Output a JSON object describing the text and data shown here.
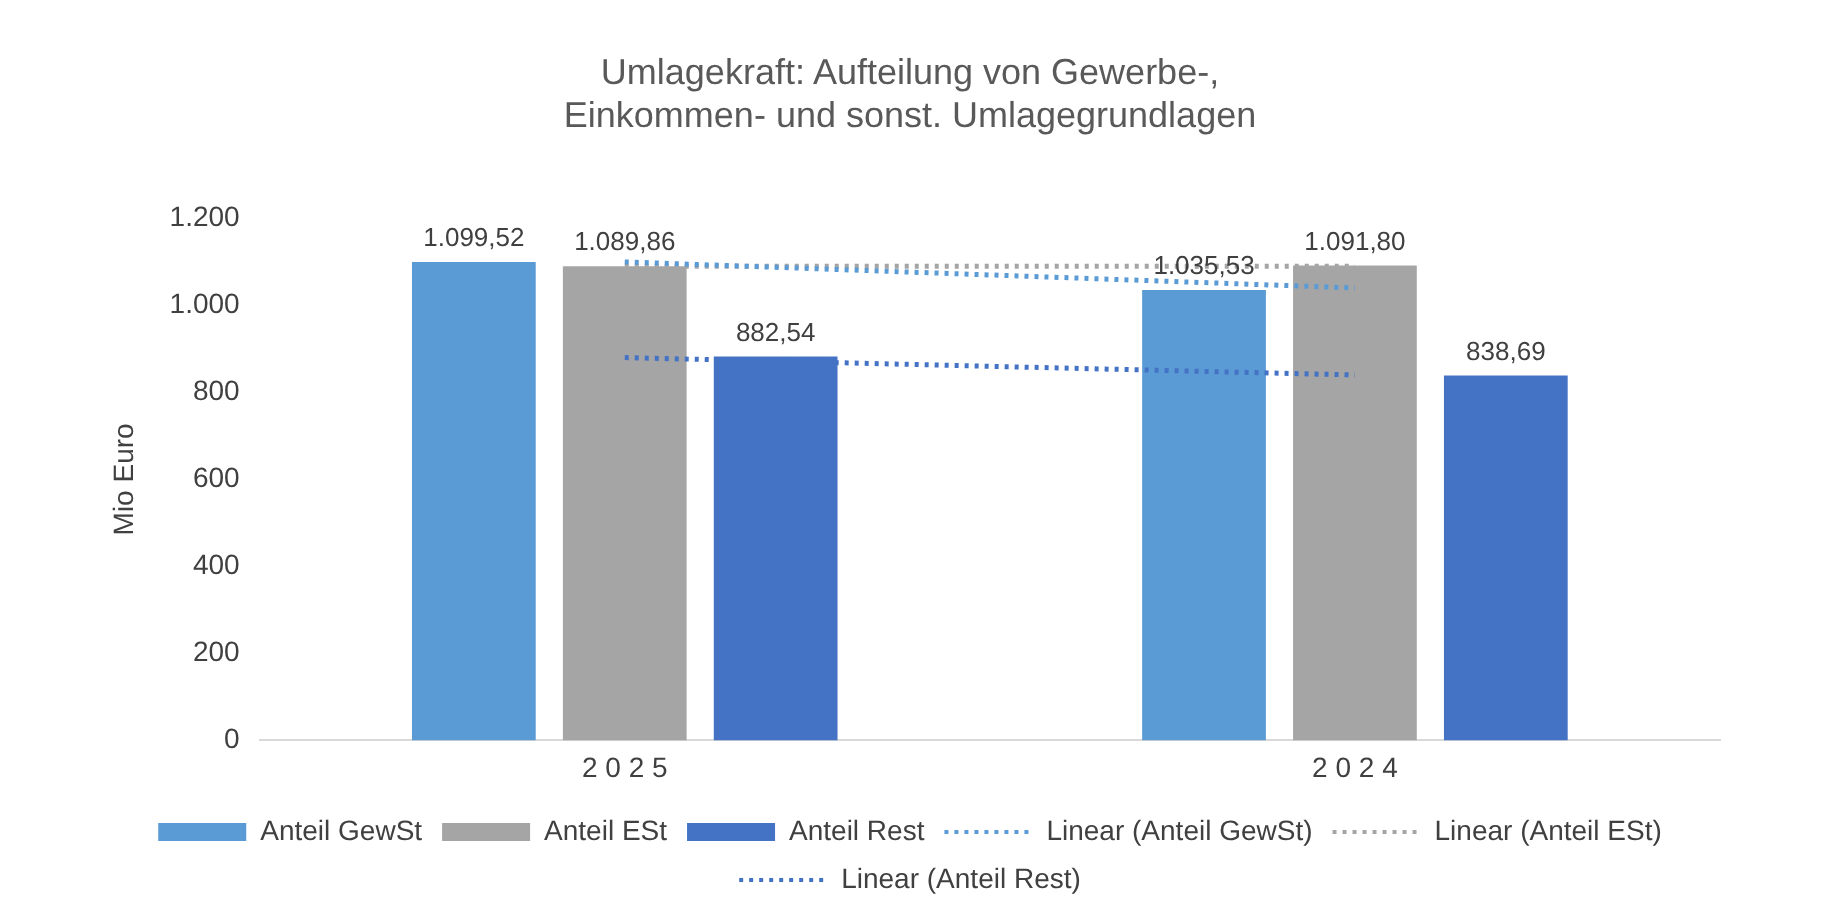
{
  "chart_data": {
    "type": "bar",
    "title": "Umlagekraft: Aufteilung von Gewerbe-,\nEinkommen- und sonst. Umlagegrundlagen",
    "ylabel": "Mio Euro",
    "categories": [
      "2 0 2 5",
      "2 0 2 4"
    ],
    "series": [
      {
        "name": "Anteil GewSt",
        "color": "#5b9bd5",
        "values": [
          1099.52,
          1035.53
        ],
        "value_labels": [
          "1.099,52",
          "1.035,53"
        ]
      },
      {
        "name": "Anteil ESt",
        "color": "#a5a5a5",
        "values": [
          1089.86,
          1091.8
        ],
        "value_labels": [
          "1.089,86",
          "1.091,80"
        ]
      },
      {
        "name": "Anteil Rest",
        "color": "#4472c4",
        "values": [
          882.54,
          838.69
        ],
        "value_labels": [
          "882,54",
          "838,69"
        ]
      },
      {
        "name": "Linear (Anteil GewSt)",
        "type": "line",
        "color": "#5b9bd5",
        "values": [
          1100,
          1040
        ],
        "line_style": "dotted",
        "marker": "none"
      },
      {
        "name": "Linear (Anteil ESt)",
        "type": "line",
        "color": "#a5a5a5",
        "values": [
          1090,
          1090
        ],
        "line_style": "dotted",
        "marker": "none"
      },
      {
        "name": "Linear (Anteil Rest)",
        "type": "line",
        "color": "#4472c4",
        "values": [
          880,
          840
        ],
        "line_style": "dotted",
        "marker": "none"
      }
    ],
    "ylim": [
      0,
      1200
    ],
    "yticks": [
      0,
      200,
      400,
      600,
      800,
      {
        "value": 1000,
        "label": "1.000"
      },
      {
        "value": 1200,
        "label": "1.200"
      }
    ],
    "grid": false,
    "legend": "bottom"
  }
}
